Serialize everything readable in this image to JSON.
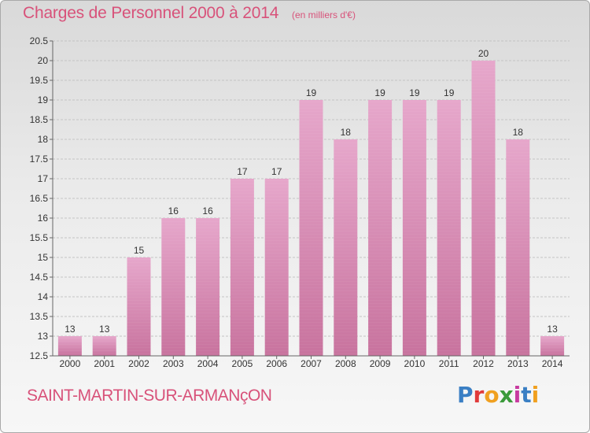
{
  "header": {
    "title": "Charges de Personnel 2000 à 2014",
    "unit": "(en milliers d'€)"
  },
  "footer": {
    "commune": "SAINT-MARTIN-SUR-ARMANçON",
    "logo_text": "Proxiti",
    "logo_colors": [
      "#3a7fc4",
      "#e03a3a",
      "#f0a020",
      "#3a9a3a",
      "#c83aa0",
      "#3a7fc4",
      "#f0a020"
    ]
  },
  "chart_data": {
    "type": "bar",
    "title": "Charges de Personnel 2000 à 2014",
    "subtitle": "(en milliers d'€)",
    "categories": [
      "2000",
      "2001",
      "2002",
      "2003",
      "2004",
      "2005",
      "2006",
      "2007",
      "2008",
      "2009",
      "2010",
      "2011",
      "2012",
      "2013",
      "2014"
    ],
    "values": [
      13,
      13,
      15,
      16,
      16,
      17,
      17,
      19,
      18,
      19,
      19,
      19,
      20,
      18,
      13
    ],
    "data_labels": [
      "13",
      "13",
      "15",
      "16",
      "16",
      "17",
      "17",
      "19",
      "18",
      "19",
      "19",
      "19",
      "20",
      "18",
      "13"
    ],
    "ylim": [
      12.5,
      20.5
    ],
    "yticks": [
      "12.5",
      "13",
      "13.5",
      "14",
      "14.5",
      "15",
      "15.5",
      "16",
      "16.5",
      "17",
      "17.5",
      "18",
      "18.5",
      "19",
      "19.5",
      "20",
      "20.5"
    ],
    "grid": true,
    "bar_color": "#c8739e",
    "bar_color_light": "#e6a7cb",
    "legend": "none"
  }
}
